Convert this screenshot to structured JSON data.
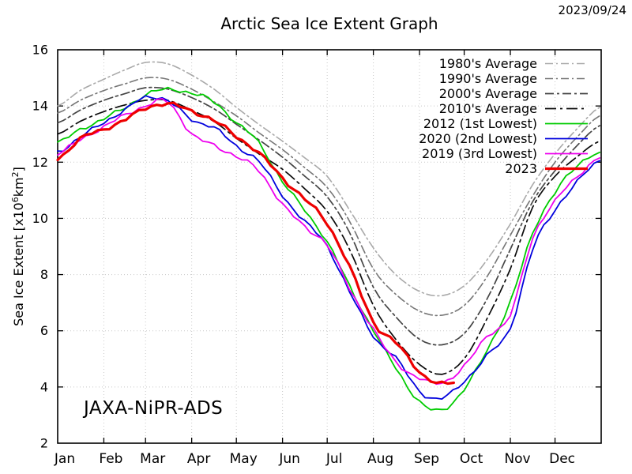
{
  "page": {
    "title": "Arctic Sea Ice Extent Graph",
    "date_label": "2023/09/24",
    "watermark": "JAXA-NiPR-ADS"
  },
  "y_axis_label": {
    "prefix": "Sea Ice Extent [x10",
    "sup1": "6",
    "mid": "km",
    "sup2": "2",
    "suffix": "]"
  },
  "colors": {
    "background": "#ffffff",
    "axis": "#000000",
    "grid": "#c8c8c8",
    "text": "#000000"
  },
  "chart_data": {
    "type": "line",
    "title": "Arctic Sea Ice Extent Graph",
    "ylabel": "Sea Ice Extent [x10^6 km^2]",
    "xlabel": "",
    "grid": true,
    "legend_position": "top-right",
    "ylim": [
      2,
      16
    ],
    "y_ticks": [
      2,
      4,
      6,
      8,
      10,
      12,
      14,
      16
    ],
    "x_range_days": [
      0,
      365
    ],
    "month_labels": [
      "Jan",
      "Feb",
      "Mar",
      "Apr",
      "May",
      "Jun",
      "Jul",
      "Aug",
      "Sep",
      "Oct",
      "Nov",
      "Dec"
    ],
    "month_start_days": [
      0,
      31,
      59,
      90,
      120,
      151,
      181,
      212,
      243,
      273,
      304,
      334
    ],
    "anchor_days": [
      0,
      15,
      31,
      46,
      59,
      74,
      90,
      105,
      120,
      135,
      151,
      166,
      181,
      196,
      212,
      227,
      243,
      258,
      273,
      288,
      304,
      319,
      334,
      349,
      364
    ],
    "series": [
      {
        "key": "avg1980s",
        "label": "1980's Average",
        "color": "#a9a9a9",
        "dash": "10 4 2 4",
        "width": 1.6,
        "noise": false,
        "values": [
          14.0,
          14.55,
          14.95,
          15.3,
          15.55,
          15.5,
          15.1,
          14.6,
          13.95,
          13.35,
          12.75,
          12.15,
          11.5,
          10.3,
          8.95,
          8.0,
          7.4,
          7.25,
          7.6,
          8.5,
          9.8,
          11.2,
          12.3,
          13.2,
          13.95
        ]
      },
      {
        "key": "avg1990s",
        "label": "1990's Average",
        "color": "#767676",
        "dash": "10 4 2 4",
        "width": 1.6,
        "noise": false,
        "values": [
          13.75,
          14.2,
          14.55,
          14.8,
          15.0,
          14.95,
          14.6,
          14.15,
          13.65,
          13.05,
          12.45,
          11.8,
          11.1,
          9.9,
          8.2,
          7.3,
          6.7,
          6.55,
          6.9,
          7.9,
          9.4,
          10.8,
          12.0,
          12.9,
          13.65
        ]
      },
      {
        "key": "avg2000s",
        "label": "2000's Average",
        "color": "#454545",
        "dash": "11 4 3 4",
        "width": 1.7,
        "noise": false,
        "values": [
          13.4,
          13.85,
          14.2,
          14.45,
          14.65,
          14.6,
          14.3,
          13.9,
          13.35,
          12.8,
          12.18,
          11.5,
          10.77,
          9.5,
          7.55,
          6.5,
          5.7,
          5.5,
          5.9,
          7.1,
          8.9,
          10.6,
          11.7,
          12.6,
          13.3
        ]
      },
      {
        "key": "avg2010s",
        "label": "2010's Average",
        "color": "#0a0a0a",
        "dash": "14 5 3 5",
        "width": 1.7,
        "noise": false,
        "values": [
          13.0,
          13.45,
          13.8,
          14.05,
          14.2,
          14.2,
          13.85,
          13.45,
          12.85,
          12.3,
          11.75,
          11.05,
          10.25,
          8.9,
          6.9,
          5.7,
          4.8,
          4.45,
          5.0,
          6.4,
          8.2,
          10.4,
          11.5,
          12.2,
          12.75
        ]
      },
      {
        "key": "y2012",
        "label": "2012 (1st Lowest)",
        "color": "#00cc00",
        "dash": "none",
        "width": 1.8,
        "noise": true,
        "values": [
          12.7,
          13.15,
          13.55,
          13.95,
          14.4,
          14.6,
          14.45,
          14.15,
          13.4,
          12.7,
          11.3,
          10.3,
          9.15,
          7.6,
          6.0,
          4.7,
          3.45,
          3.2,
          3.9,
          5.3,
          7.0,
          9.5,
          10.9,
          11.9,
          12.35
        ]
      },
      {
        "key": "y2020",
        "label": "2020 (2nd Lowest)",
        "color": "#0000dd",
        "dash": "none",
        "width": 1.8,
        "noise": true,
        "values": [
          12.35,
          12.9,
          13.4,
          13.9,
          14.3,
          14.2,
          13.5,
          13.25,
          12.55,
          12.05,
          10.8,
          9.9,
          9.0,
          7.4,
          5.8,
          5.05,
          3.85,
          3.6,
          4.2,
          5.1,
          6.1,
          8.9,
          10.3,
          11.3,
          12.05
        ]
      },
      {
        "key": "y2019",
        "label": "2019 (3rd Lowest)",
        "color": "#ee00ee",
        "dash": "none",
        "width": 1.8,
        "noise": true,
        "values": [
          12.3,
          12.8,
          13.25,
          13.7,
          14.0,
          14.15,
          13.0,
          12.6,
          12.2,
          11.7,
          10.5,
          9.7,
          9.05,
          7.5,
          6.05,
          4.9,
          4.3,
          4.16,
          4.73,
          5.8,
          6.55,
          9.3,
          10.6,
          11.5,
          12.15
        ]
      },
      {
        "key": "y2023",
        "label": "2023",
        "color": "#ee0000",
        "dash": "none",
        "width": 3.2,
        "noise": true,
        "days": [
          0,
          15,
          31,
          46,
          59,
          74,
          90,
          105,
          120,
          135,
          151,
          166,
          181,
          196,
          212,
          227,
          243,
          258,
          266
        ],
        "values": [
          12.1,
          12.85,
          13.15,
          13.55,
          13.9,
          14.1,
          13.8,
          13.5,
          12.9,
          12.35,
          11.42,
          10.7,
          9.8,
          8.3,
          6.3,
          5.6,
          4.53,
          4.12,
          4.15
        ]
      }
    ]
  }
}
